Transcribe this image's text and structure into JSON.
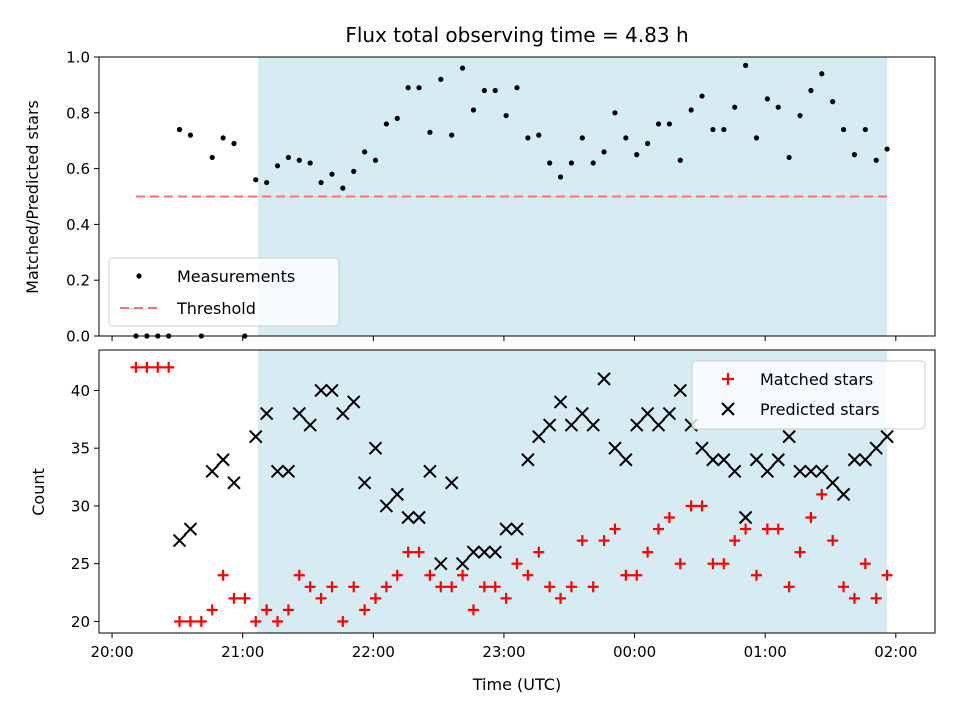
{
  "title": "Flux total observing time = 4.83 h",
  "colors": {
    "shade": "#add8e6",
    "threshold": "#ff6f6f",
    "matched": "#ff0000",
    "predicted": "#000000",
    "measurement": "#000000"
  },
  "chart_data": [
    {
      "type": "scatter",
      "xlabel": "",
      "ylabel": "Matched/Predicted stars",
      "ylim": [
        0,
        1.0
      ],
      "yticks": [
        "0.0",
        "0.2",
        "0.4",
        "0.6",
        "0.8",
        "1.0"
      ],
      "ytick_values": [
        0,
        0.2,
        0.4,
        0.6,
        0.8,
        1.0
      ],
      "shaded_span": [
        "21:07",
        "01:56"
      ],
      "legend": {
        "placement": "lower-left",
        "entries": [
          "Measurements",
          "Threshold"
        ]
      },
      "series": [
        {
          "name": "Measurements",
          "x": [
            "20:11",
            "20:16",
            "20:21",
            "20:26",
            "20:31",
            "20:31",
            "20:36",
            "20:41",
            "20:46",
            "20:51",
            "20:56",
            "21:01",
            "21:06",
            "21:11",
            "21:16",
            "21:21",
            "21:26",
            "21:31",
            "21:36",
            "21:41",
            "21:46",
            "21:51",
            "21:56",
            "22:01",
            "22:06",
            "22:11",
            "22:16",
            "22:21",
            "22:26",
            "22:31",
            "22:36",
            "22:41",
            "22:46",
            "22:51",
            "22:56",
            "23:01",
            "23:06",
            "23:11",
            "23:16",
            "23:21",
            "23:26",
            "23:31",
            "23:36",
            "23:41",
            "23:46",
            "23:51",
            "23:56",
            "00:01",
            "00:06",
            "00:11",
            "00:16",
            "00:21",
            "00:26",
            "00:31",
            "00:36",
            "00:41",
            "00:46",
            "00:51",
            "00:56",
            "01:01",
            "01:06",
            "01:11",
            "01:16",
            "01:21",
            "01:26",
            "01:31",
            "01:36",
            "01:41",
            "01:46",
            "01:51",
            "01:56"
          ],
          "y": [
            0,
            0,
            0,
            0,
            0.74,
            0.74,
            0.72,
            0,
            0.64,
            0.71,
            0.69,
            0,
            0.56,
            0.55,
            0.61,
            0.64,
            0.63,
            0.62,
            0.55,
            0.58,
            0.53,
            0.59,
            0.66,
            0.63,
            0.76,
            0.78,
            0.89,
            0.89,
            0.73,
            0.92,
            0.72,
            0.96,
            0.81,
            0.88,
            0.88,
            0.79,
            0.89,
            0.71,
            0.72,
            0.62,
            0.57,
            0.62,
            0.71,
            0.62,
            0.66,
            0.8,
            0.71,
            0.65,
            0.69,
            0.76,
            0.76,
            0.63,
            0.81,
            0.86,
            0.74,
            0.74,
            0.82,
            0.97,
            0.71,
            0.85,
            0.82,
            0.64,
            0.79,
            0.88,
            0.94,
            0.84,
            0.74,
            0.65,
            0.74,
            0.63,
            0.67
          ]
        },
        {
          "name": "Threshold",
          "x": [
            "20:11",
            "01:56"
          ],
          "y": [
            0.5,
            0.5
          ]
        }
      ]
    },
    {
      "type": "scatter",
      "xlabel": "Time (UTC)",
      "ylabel": "Count",
      "ylim": [
        19,
        43.5
      ],
      "yticks": [
        "20",
        "25",
        "30",
        "35",
        "40"
      ],
      "ytick_values": [
        20,
        25,
        30,
        35,
        40
      ],
      "xticks": [
        "20:00",
        "21:00",
        "22:00",
        "23:00",
        "00:00",
        "01:00",
        "02:00"
      ],
      "xlim": [
        "19:54",
        "02:18"
      ],
      "shaded_span": [
        "21:07",
        "01:56"
      ],
      "legend": {
        "placement": "upper-right",
        "entries": [
          "Matched stars",
          "Predicted stars"
        ]
      },
      "series": [
        {
          "name": "Matched stars",
          "x": [
            "20:11",
            "20:16",
            "20:21",
            "20:26",
            "20:31",
            "20:36",
            "20:41",
            "20:46",
            "20:51",
            "20:56",
            "21:01",
            "21:06",
            "21:11",
            "21:16",
            "21:21",
            "21:26",
            "21:31",
            "21:36",
            "21:41",
            "21:46",
            "21:51",
            "21:56",
            "22:01",
            "22:06",
            "22:11",
            "22:16",
            "22:21",
            "22:26",
            "22:31",
            "22:36",
            "22:41",
            "22:46",
            "22:51",
            "22:56",
            "23:01",
            "23:06",
            "23:11",
            "23:16",
            "23:21",
            "23:26",
            "23:31",
            "23:36",
            "23:41",
            "23:46",
            "23:51",
            "23:56",
            "00:01",
            "00:06",
            "00:11",
            "00:16",
            "00:21",
            "00:26",
            "00:31",
            "00:36",
            "00:41",
            "00:46",
            "00:51",
            "00:56",
            "01:01",
            "01:06",
            "01:11",
            "01:16",
            "01:21",
            "01:26",
            "01:31",
            "01:36",
            "01:41",
            "01:46",
            "01:51",
            "01:56"
          ],
          "y": [
            42,
            42,
            42,
            42,
            20,
            20,
            20,
            21,
            24,
            22,
            22,
            20,
            21,
            20,
            21,
            24,
            23,
            22,
            23,
            20,
            23,
            21,
            22,
            23,
            24,
            26,
            26,
            24,
            23,
            23,
            24,
            21,
            23,
            23,
            22,
            25,
            24,
            26,
            23,
            22,
            23,
            27,
            23,
            27,
            28,
            24,
            24,
            26,
            28,
            29,
            25,
            30,
            30,
            25,
            25,
            27,
            28,
            24,
            28,
            28,
            23,
            26,
            29,
            31,
            27,
            23,
            22,
            25,
            22,
            24
          ]
        },
        {
          "name": "Predicted stars",
          "x": [
            "20:31",
            "20:36",
            "20:46",
            "20:51",
            "20:56",
            "21:06",
            "21:11",
            "21:16",
            "21:21",
            "21:26",
            "21:31",
            "21:36",
            "21:41",
            "21:46",
            "21:51",
            "21:56",
            "22:01",
            "22:06",
            "22:11",
            "22:16",
            "22:21",
            "22:26",
            "22:31",
            "22:36",
            "22:41",
            "22:46",
            "22:51",
            "22:56",
            "23:01",
            "23:06",
            "23:11",
            "23:16",
            "23:21",
            "23:26",
            "23:31",
            "23:36",
            "23:41",
            "23:46",
            "23:51",
            "23:56",
            "00:01",
            "00:06",
            "00:11",
            "00:16",
            "00:21",
            "00:26",
            "00:31",
            "00:36",
            "00:41",
            "00:46",
            "00:51",
            "00:56",
            "01:01",
            "01:06",
            "01:11",
            "01:16",
            "01:21",
            "01:26",
            "01:31",
            "01:36",
            "01:41",
            "01:46",
            "01:51",
            "01:56"
          ],
          "y": [
            27,
            28,
            33,
            34,
            32,
            36,
            38,
            33,
            33,
            38,
            37,
            40,
            40,
            38,
            39,
            32,
            35,
            30,
            31,
            29,
            29,
            33,
            25,
            32,
            25,
            26,
            26,
            26,
            28,
            28,
            34,
            36,
            37,
            39,
            37,
            38,
            37,
            41,
            35,
            34,
            37,
            38,
            37,
            38,
            40,
            37,
            35,
            34,
            34,
            33,
            29,
            34,
            33,
            34,
            36,
            33,
            33,
            33,
            32,
            31,
            34,
            34,
            35,
            36
          ]
        }
      ]
    }
  ]
}
